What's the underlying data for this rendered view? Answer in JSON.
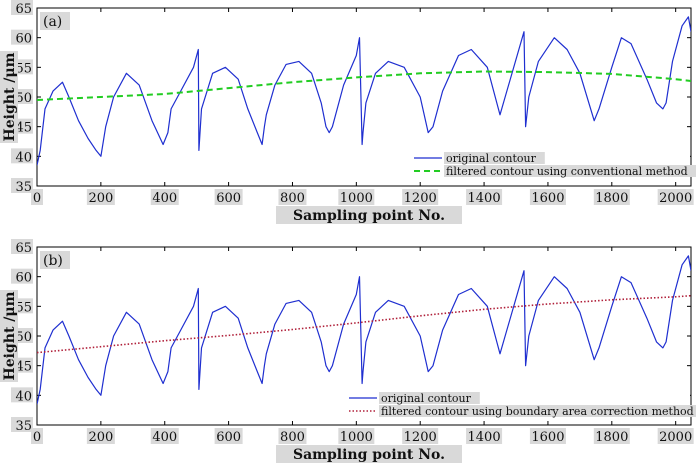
{
  "chart_data": [
    {
      "type": "line",
      "panel_label": "(a)",
      "xlabel": "Sampling point No.",
      "ylabel": "Height /μm",
      "xlim": [
        0,
        2048
      ],
      "ylim": [
        35,
        65
      ],
      "xticks": [
        0,
        200,
        400,
        600,
        800,
        1000,
        1200,
        1400,
        1600,
        1800,
        2000
      ],
      "yticks": [
        35,
        40,
        45,
        50,
        55,
        60,
        65
      ],
      "grid": false,
      "legend_position": "bottom-right",
      "series": [
        {
          "name": "original contour",
          "color": "#1f2fd0",
          "style": "solid",
          "x": [
            0,
            10,
            25,
            50,
            80,
            100,
            130,
            160,
            185,
            200,
            215,
            240,
            280,
            320,
            360,
            395,
            410,
            420,
            450,
            490,
            505,
            507,
            515,
            550,
            590,
            630,
            660,
            690,
            705,
            712,
            718,
            745,
            780,
            820,
            860,
            890,
            905,
            915,
            925,
            960,
            1000,
            1010,
            1018,
            1021,
            1030,
            1060,
            1100,
            1150,
            1200,
            1225,
            1240,
            1270,
            1320,
            1360,
            1410,
            1440,
            1450,
            1525,
            1530,
            1540,
            1570,
            1620,
            1660,
            1700,
            1745,
            1760,
            1800,
            1830,
            1860,
            1910,
            1940,
            1960,
            1970,
            1990,
            2020,
            2040,
            2048
          ],
          "y": [
            38.5,
            41,
            48,
            51,
            52.5,
            50,
            46,
            43,
            41,
            40,
            45,
            50,
            54,
            52,
            46,
            42,
            44,
            48,
            51,
            55,
            58,
            41,
            48,
            54,
            55,
            53,
            48,
            44,
            42,
            45,
            47,
            52,
            55.5,
            56,
            54,
            49,
            45,
            44,
            45,
            52,
            57,
            60,
            42,
            44,
            49,
            54,
            56,
            55,
            50,
            44,
            45,
            51,
            57,
            58,
            55,
            49,
            47,
            61,
            45,
            50,
            56,
            60,
            58,
            54,
            46,
            48,
            55,
            60,
            59,
            53,
            49,
            48,
            49,
            56,
            62,
            63.5,
            61
          ]
        },
        {
          "name": "filtered contour using conventional method",
          "color": "#22cc22",
          "style": "dashed",
          "x": [
            0,
            200,
            400,
            600,
            800,
            1000,
            1200,
            1400,
            1600,
            1800,
            2000,
            2048
          ],
          "y": [
            49.5,
            50,
            50.5,
            51.5,
            52.5,
            53.3,
            54,
            54.3,
            54.2,
            53.9,
            53,
            52.7
          ]
        }
      ]
    },
    {
      "type": "line",
      "panel_label": "(b)",
      "xlabel": "Sampling point No.",
      "ylabel": "Height /μm",
      "xlim": [
        0,
        2048
      ],
      "ylim": [
        35,
        65
      ],
      "xticks": [
        0,
        200,
        400,
        600,
        800,
        1000,
        1200,
        1400,
        1600,
        1800,
        2000
      ],
      "yticks": [
        35,
        40,
        45,
        50,
        55,
        60,
        65
      ],
      "grid": false,
      "legend_position": "bottom-right",
      "series": [
        {
          "name": "original contour",
          "color": "#1f2fd0",
          "style": "solid",
          "x": [
            0,
            10,
            25,
            50,
            80,
            100,
            130,
            160,
            185,
            200,
            215,
            240,
            280,
            320,
            360,
            395,
            410,
            420,
            450,
            490,
            505,
            507,
            515,
            550,
            590,
            630,
            660,
            690,
            705,
            712,
            718,
            745,
            780,
            820,
            860,
            890,
            905,
            915,
            925,
            960,
            1000,
            1010,
            1018,
            1021,
            1030,
            1060,
            1100,
            1150,
            1200,
            1225,
            1240,
            1270,
            1320,
            1360,
            1410,
            1440,
            1450,
            1525,
            1530,
            1540,
            1570,
            1620,
            1660,
            1700,
            1745,
            1760,
            1800,
            1830,
            1860,
            1910,
            1940,
            1960,
            1970,
            1990,
            2020,
            2040,
            2048
          ],
          "y": [
            38.5,
            41,
            48,
            51,
            52.5,
            50,
            46,
            43,
            41,
            40,
            45,
            50,
            54,
            52,
            46,
            42,
            44,
            48,
            51,
            55,
            58,
            41,
            48,
            54,
            55,
            53,
            48,
            44,
            42,
            45,
            47,
            52,
            55.5,
            56,
            54,
            49,
            45,
            44,
            45,
            52,
            57,
            60,
            42,
            44,
            49,
            54,
            56,
            55,
            50,
            44,
            45,
            51,
            57,
            58,
            55,
            49,
            47,
            61,
            45,
            50,
            56,
            60,
            58,
            54,
            46,
            48,
            55,
            60,
            59,
            53,
            49,
            48,
            49,
            56,
            62,
            63.5,
            61
          ]
        },
        {
          "name": "filtered contour using boundary area correction method",
          "color": "#b0203a",
          "style": "dotted",
          "x": [
            0,
            200,
            400,
            600,
            800,
            1000,
            1200,
            1400,
            1600,
            1800,
            2000,
            2048
          ],
          "y": [
            47.2,
            48.2,
            49.2,
            50.1,
            51.1,
            52.2,
            53.4,
            54.5,
            55.4,
            56.1,
            56.6,
            56.8
          ]
        }
      ]
    }
  ]
}
